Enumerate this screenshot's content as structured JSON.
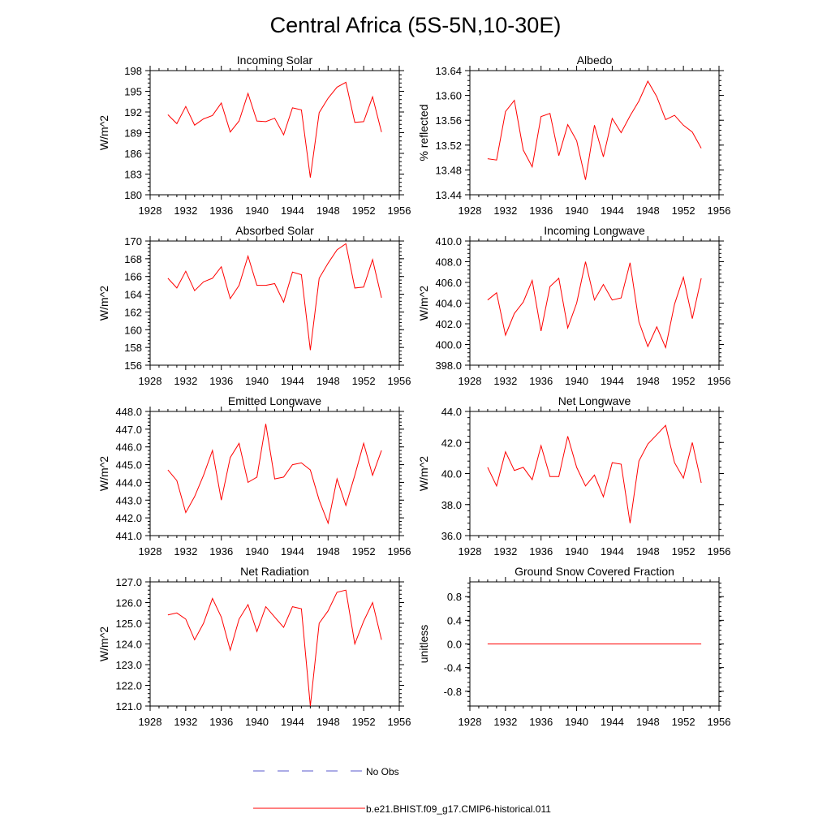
{
  "title": "Central Africa (5S-5N,10-30E)",
  "legend": {
    "items": [
      {
        "label": "No Obs",
        "color": "#5a5acd",
        "style": "dashed"
      },
      {
        "label": "b.e21.BHIST.f09_g17.CMIP6-historical.011",
        "color": "#ff0000",
        "style": "solid"
      }
    ]
  },
  "chart_data": [
    {
      "type": "line",
      "title": "Incoming Solar",
      "ylabel": "W/m^2",
      "xlim": [
        1928,
        1956
      ],
      "ylim": [
        180,
        198
      ],
      "xticks": [
        1928,
        1932,
        1936,
        1940,
        1944,
        1948,
        1952,
        1956
      ],
      "yticks": [
        180,
        183,
        186,
        189,
        192,
        195,
        198
      ],
      "ytick_labels": [
        "180",
        "183",
        "186",
        "189",
        "192",
        "195",
        "198"
      ],
      "yaxis_side": "left",
      "x": [
        1930,
        1931,
        1932,
        1933,
        1934,
        1935,
        1936,
        1937,
        1938,
        1939,
        1940,
        1941,
        1942,
        1943,
        1944,
        1945,
        1946,
        1947,
        1948,
        1949,
        1950,
        1951,
        1952,
        1953,
        1954
      ],
      "series": [
        {
          "color": "#ff0000",
          "values": [
            191.6,
            190.3,
            192.8,
            190.1,
            191.0,
            191.5,
            193.3,
            189.1,
            190.7,
            194.7,
            190.7,
            190.6,
            191.1,
            188.7,
            192.6,
            192.3,
            182.5,
            191.9,
            194.0,
            195.6,
            196.3,
            190.5,
            190.6,
            194.2,
            189.1
          ]
        }
      ]
    },
    {
      "type": "line",
      "title": "Albedo",
      "ylabel": "% reflected",
      "xlim": [
        1928,
        1956
      ],
      "ylim": [
        13.44,
        13.64
      ],
      "xticks": [
        1928,
        1932,
        1936,
        1940,
        1944,
        1948,
        1952,
        1956
      ],
      "yticks": [
        13.44,
        13.48,
        13.52,
        13.56,
        13.6,
        13.64
      ],
      "ytick_labels": [
        "13.44",
        "13.48",
        "13.52",
        "13.56",
        "13.60",
        "13.64"
      ],
      "yaxis_side": "left",
      "x": [
        1930,
        1931,
        1932,
        1933,
        1934,
        1935,
        1936,
        1937,
        1938,
        1939,
        1940,
        1941,
        1942,
        1943,
        1944,
        1945,
        1946,
        1947,
        1948,
        1949,
        1950,
        1951,
        1952,
        1953,
        1954
      ],
      "series": [
        {
          "color": "#ff0000",
          "values": [
            13.498,
            13.496,
            13.574,
            13.592,
            13.512,
            13.485,
            13.566,
            13.571,
            13.503,
            13.553,
            13.527,
            13.464,
            13.552,
            13.501,
            13.563,
            13.54,
            13.567,
            13.591,
            13.623,
            13.598,
            13.561,
            13.568,
            13.552,
            13.541,
            13.515
          ]
        }
      ]
    },
    {
      "type": "line",
      "title": "Absorbed Solar",
      "ylabel": "W/m^2",
      "xlim": [
        1928,
        1956
      ],
      "ylim": [
        156,
        170
      ],
      "xticks": [
        1928,
        1932,
        1936,
        1940,
        1944,
        1948,
        1952,
        1956
      ],
      "yticks": [
        156,
        158,
        160,
        162,
        164,
        166,
        168,
        170
      ],
      "ytick_labels": [
        "156",
        "158",
        "160",
        "162",
        "164",
        "166",
        "168",
        "170"
      ],
      "yaxis_side": "left",
      "x": [
        1930,
        1931,
        1932,
        1933,
        1934,
        1935,
        1936,
        1937,
        1938,
        1939,
        1940,
        1941,
        1942,
        1943,
        1944,
        1945,
        1946,
        1947,
        1948,
        1949,
        1950,
        1951,
        1952,
        1953,
        1954
      ],
      "series": [
        {
          "color": "#ff0000",
          "values": [
            165.8,
            164.7,
            166.6,
            164.4,
            165.4,
            165.8,
            167.1,
            163.5,
            165.0,
            168.3,
            165.0,
            165.0,
            165.2,
            163.1,
            166.5,
            166.2,
            157.7,
            165.8,
            167.5,
            169.0,
            169.7,
            164.7,
            164.8,
            167.9,
            163.6
          ]
        }
      ]
    },
    {
      "type": "line",
      "title": "Incoming Longwave",
      "ylabel": "W/m^2",
      "xlim": [
        1928,
        1956
      ],
      "ylim": [
        398.0,
        410.0
      ],
      "xticks": [
        1928,
        1932,
        1936,
        1940,
        1944,
        1948,
        1952,
        1956
      ],
      "yticks": [
        398,
        400,
        402,
        404,
        406,
        408,
        410
      ],
      "ytick_labels": [
        "398.0",
        "400.0",
        "402.0",
        "404.0",
        "406.0",
        "408.0",
        "410.0"
      ],
      "yaxis_side": "left",
      "x": [
        1930,
        1931,
        1932,
        1933,
        1934,
        1935,
        1936,
        1937,
        1938,
        1939,
        1940,
        1941,
        1942,
        1943,
        1944,
        1945,
        1946,
        1947,
        1948,
        1949,
        1950,
        1951,
        1952,
        1953,
        1954
      ],
      "series": [
        {
          "color": "#ff0000",
          "values": [
            404.3,
            405.0,
            400.9,
            403.0,
            404.1,
            406.2,
            401.3,
            405.6,
            406.4,
            401.6,
            404.0,
            408.0,
            404.3,
            405.8,
            404.3,
            404.5,
            407.9,
            402.2,
            399.8,
            401.7,
            399.7,
            403.9,
            406.5,
            402.5,
            406.4
          ]
        }
      ]
    },
    {
      "type": "line",
      "title": "Emitted Longwave",
      "ylabel": "W/m^2",
      "xlim": [
        1928,
        1956
      ],
      "ylim": [
        441.0,
        448.0
      ],
      "xticks": [
        1928,
        1932,
        1936,
        1940,
        1944,
        1948,
        1952,
        1956
      ],
      "yticks": [
        441,
        442,
        443,
        444,
        445,
        446,
        447,
        448
      ],
      "ytick_labels": [
        "441.0",
        "442.0",
        "443.0",
        "444.0",
        "445.0",
        "446.0",
        "447.0",
        "448.0"
      ],
      "yaxis_side": "left",
      "x": [
        1930,
        1931,
        1932,
        1933,
        1934,
        1935,
        1936,
        1937,
        1938,
        1939,
        1940,
        1941,
        1942,
        1943,
        1944,
        1945,
        1946,
        1947,
        1948,
        1949,
        1950,
        1951,
        1952,
        1953,
        1954
      ],
      "series": [
        {
          "color": "#ff0000",
          "values": [
            444.7,
            444.1,
            442.3,
            443.2,
            444.4,
            445.8,
            443.0,
            445.4,
            446.2,
            444.0,
            444.3,
            447.3,
            444.2,
            444.3,
            445.0,
            445.1,
            444.7,
            443.0,
            441.7,
            444.2,
            442.7,
            444.4,
            446.2,
            444.4,
            445.8
          ]
        }
      ]
    },
    {
      "type": "line",
      "title": "Net Longwave",
      "ylabel": "W/m^2",
      "xlim": [
        1928,
        1956
      ],
      "ylim": [
        36.0,
        44.0
      ],
      "xticks": [
        1928,
        1932,
        1936,
        1940,
        1944,
        1948,
        1952,
        1956
      ],
      "yticks": [
        36,
        38,
        40,
        42,
        44
      ],
      "ytick_labels": [
        "36.0",
        "38.0",
        "40.0",
        "42.0",
        "44.0"
      ],
      "yaxis_side": "left",
      "x": [
        1930,
        1931,
        1932,
        1933,
        1934,
        1935,
        1936,
        1937,
        1938,
        1939,
        1940,
        1941,
        1942,
        1943,
        1944,
        1945,
        1946,
        1947,
        1948,
        1949,
        1950,
        1951,
        1952,
        1953,
        1954
      ],
      "series": [
        {
          "color": "#ff0000",
          "values": [
            40.4,
            39.2,
            41.4,
            40.2,
            40.4,
            39.6,
            41.8,
            39.8,
            39.8,
            42.4,
            40.4,
            39.2,
            39.9,
            38.5,
            40.7,
            40.6,
            36.8,
            40.8,
            41.9,
            42.5,
            43.1,
            40.7,
            39.7,
            42.0,
            39.4
          ]
        }
      ]
    },
    {
      "type": "line",
      "title": "Net Radiation",
      "ylabel": "W/m^2",
      "xlim": [
        1928,
        1956
      ],
      "ylim": [
        121.0,
        127.0
      ],
      "xticks": [
        1928,
        1932,
        1936,
        1940,
        1944,
        1948,
        1952,
        1956
      ],
      "yticks": [
        121,
        122,
        123,
        124,
        125,
        126,
        127
      ],
      "ytick_labels": [
        "121.0",
        "122.0",
        "123.0",
        "124.0",
        "125.0",
        "126.0",
        "127.0"
      ],
      "yaxis_side": "left",
      "x": [
        1930,
        1931,
        1932,
        1933,
        1934,
        1935,
        1936,
        1937,
        1938,
        1939,
        1940,
        1941,
        1942,
        1943,
        1944,
        1945,
        1946,
        1947,
        1948,
        1949,
        1950,
        1951,
        1952,
        1953,
        1954
      ],
      "series": [
        {
          "color": "#ff0000",
          "values": [
            125.4,
            125.5,
            125.2,
            124.2,
            125.0,
            126.2,
            125.3,
            123.7,
            125.2,
            125.9,
            124.6,
            125.8,
            125.3,
            124.8,
            125.8,
            125.7,
            121.0,
            125.0,
            125.6,
            126.5,
            126.6,
            124.0,
            125.1,
            126.0,
            124.2
          ]
        }
      ]
    },
    {
      "type": "line",
      "title": "Ground Snow Covered Fraction",
      "ylabel": "unitless",
      "xlim": [
        1928,
        1956
      ],
      "ylim": [
        -1.05,
        1.05
      ],
      "xticks": [
        1928,
        1932,
        1936,
        1940,
        1944,
        1948,
        1952,
        1956
      ],
      "yticks": [
        -0.8,
        -0.4,
        0.0,
        0.4,
        0.8
      ],
      "ytick_labels": [
        "-0.8",
        "-0.4",
        "0.0",
        "0.4",
        "0.8"
      ],
      "yaxis_side": "left",
      "x": [
        1930,
        1931,
        1932,
        1933,
        1934,
        1935,
        1936,
        1937,
        1938,
        1939,
        1940,
        1941,
        1942,
        1943,
        1944,
        1945,
        1946,
        1947,
        1948,
        1949,
        1950,
        1951,
        1952,
        1953,
        1954
      ],
      "series": [
        {
          "color": "#ff0000",
          "values": [
            0,
            0,
            0,
            0,
            0,
            0,
            0,
            0,
            0,
            0,
            0,
            0,
            0,
            0,
            0,
            0,
            0,
            0,
            0,
            0,
            0,
            0,
            0,
            0,
            0
          ]
        }
      ]
    }
  ]
}
